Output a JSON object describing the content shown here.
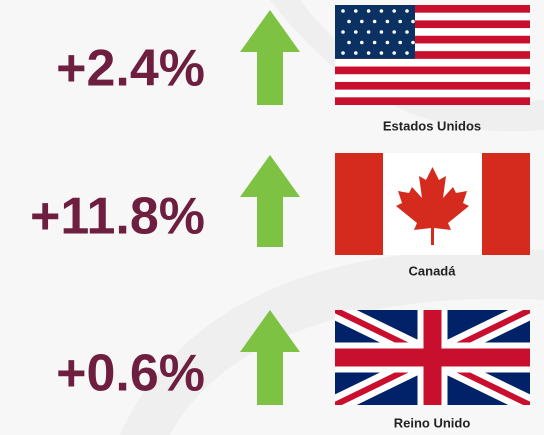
{
  "items": [
    {
      "value": "+2.4%",
      "country": "Estados Unidos"
    },
    {
      "value": "+11.8%",
      "country": "Canadá"
    },
    {
      "value": "+0.6%",
      "country": "Reino Unido"
    }
  ]
}
